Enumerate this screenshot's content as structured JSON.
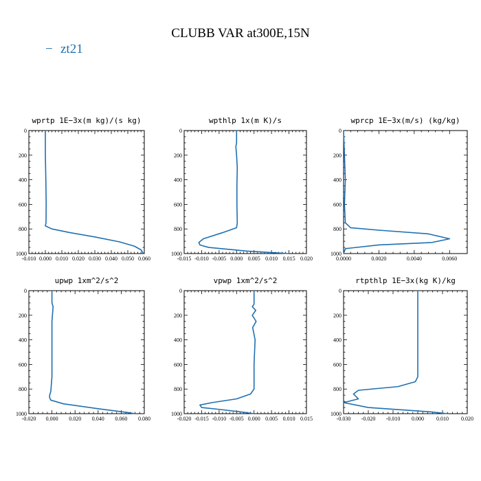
{
  "figure": {
    "title": "CLUBB VAR at300E,15N",
    "line_color": "#1f6fb0",
    "legend": {
      "label": "zt21",
      "symbol": "−"
    }
  },
  "chart_data": [
    {
      "type": "line",
      "title": "wprtp   1E−3x(m kg)/(s kg)",
      "xlim": [
        -0.01,
        0.06
      ],
      "ylim": [
        1000,
        0
      ],
      "x_ticks": [
        -0.01,
        0.0,
        0.01,
        0.02,
        0.03,
        0.04,
        0.05,
        0.06
      ],
      "x_tick_labels": [
        "-0.010",
        "0.000",
        "0.010",
        "0.020",
        "0.030",
        "0.040",
        "0.050",
        "0.060"
      ],
      "y_ticks": [
        0,
        200,
        400,
        600,
        800,
        1000
      ],
      "y_tick_labels": [
        "0",
        "200",
        "400",
        "600",
        "800",
        "1000"
      ],
      "series": [
        {
          "name": "zt21",
          "x": [
            0.0,
            0.0,
            0.0003,
            0.0005,
            0.0004,
            0.0,
            0.004,
            0.015,
            0.03,
            0.045,
            0.054,
            0.058,
            0.0595
          ],
          "y": [
            0,
            200,
            400,
            600,
            750,
            775,
            800,
            830,
            865,
            905,
            940,
            970,
            1000
          ]
        }
      ]
    },
    {
      "type": "line",
      "title": "wpthlp   1x(m K)/s",
      "xlim": [
        -0.015,
        0.02
      ],
      "ylim": [
        1000,
        0
      ],
      "x_ticks": [
        -0.015,
        -0.01,
        -0.005,
        0.0,
        0.005,
        0.01,
        0.015,
        0.02
      ],
      "x_tick_labels": [
        "-0.015",
        "-0.010",
        "-0.005",
        "0.000",
        "0.005",
        "0.010",
        "0.015",
        "0.020"
      ],
      "y_ticks": [
        0,
        200,
        400,
        600,
        800,
        1000
      ],
      "y_tick_labels": [
        "0",
        "200",
        "400",
        "600",
        "800",
        "1000"
      ],
      "series": [
        {
          "name": "zt21",
          "x": [
            0.0,
            0.0,
            -0.0002,
            0.0,
            0.0002,
            0.0001,
            0.0001,
            0.0002,
            0.0,
            -0.004,
            -0.0095,
            -0.0108,
            -0.0105,
            -0.008,
            0.003,
            0.015
          ],
          "y": [
            0,
            100,
            130,
            200,
            300,
            450,
            600,
            750,
            790,
            830,
            880,
            910,
            930,
            950,
            980,
            1000
          ]
        }
      ]
    },
    {
      "type": "line",
      "title": "wprcp   1E−3x(m/s) (kg/kg)",
      "xlim": [
        0.0,
        0.007
      ],
      "ylim": [
        1000,
        0
      ],
      "x_ticks": [
        0.0,
        0.002,
        0.004,
        0.006
      ],
      "x_tick_labels": [
        "0.0000",
        "0.0020",
        "0.0040",
        "0.0060"
      ],
      "y_ticks": [
        0,
        200,
        400,
        600,
        800,
        1000
      ],
      "y_tick_labels": [
        "0",
        "200",
        "400",
        "600",
        "800",
        "1000"
      ],
      "series": [
        {
          "name": "zt21",
          "x": [
            0.0,
            5e-05,
            0.0001,
            5e-05,
            0.0001,
            0.0004,
            0.002,
            0.0048,
            0.006,
            0.005,
            0.002,
            0.0001,
            0.0
          ],
          "y": [
            0,
            200,
            400,
            600,
            750,
            790,
            810,
            840,
            880,
            910,
            930,
            960,
            1000
          ]
        }
      ]
    },
    {
      "type": "line",
      "title": "upwp   1xm^2/s^2",
      "xlim": [
        -0.02,
        0.08
      ],
      "ylim": [
        1000,
        0
      ],
      "x_ticks": [
        -0.02,
        0.0,
        0.02,
        0.04,
        0.06,
        0.08
      ],
      "x_tick_labels": [
        "-0.020",
        "0.000",
        "0.020",
        "0.040",
        "0.060",
        "0.080"
      ],
      "y_ticks": [
        0,
        200,
        400,
        600,
        800,
        1000
      ],
      "y_tick_labels": [
        "0",
        "200",
        "400",
        "600",
        "800",
        "1000"
      ],
      "series": [
        {
          "name": "zt21",
          "x": [
            0.0,
            0.0,
            0.001,
            0.0,
            0.0,
            0.0,
            0.0,
            -0.001,
            -0.002,
            -0.002,
            -0.001,
            0.01,
            0.04,
            0.065,
            0.072
          ],
          "y": [
            0,
            100,
            130,
            250,
            400,
            500,
            700,
            820,
            850,
            870,
            890,
            920,
            960,
            990,
            1000
          ]
        }
      ]
    },
    {
      "type": "line",
      "title": "vpwp   1xm^2/s^2",
      "xlim": [
        -0.02,
        0.015
      ],
      "ylim": [
        1000,
        0
      ],
      "x_ticks": [
        -0.02,
        -0.015,
        -0.01,
        -0.005,
        0.0,
        0.005,
        0.01,
        0.015
      ],
      "x_tick_labels": [
        "-0.020",
        "-0.015",
        "-0.010",
        "-0.005",
        "0.000",
        "0.005",
        "0.010",
        "0.015"
      ],
      "y_ticks": [
        0,
        200,
        400,
        600,
        800,
        1000
      ],
      "y_tick_labels": [
        "0",
        "200",
        "400",
        "600",
        "800",
        "1000"
      ],
      "series": [
        {
          "name": "zt21",
          "x": [
            0.0,
            0.0,
            -0.0005,
            0.0005,
            -0.0005,
            0.0006,
            -0.0004,
            0.0001,
            0.0003,
            0.0,
            0.0,
            -0.001,
            -0.005,
            -0.012,
            -0.0155,
            -0.015,
            -0.01,
            -0.004,
            0.0
          ],
          "y": [
            0,
            110,
            130,
            160,
            200,
            250,
            300,
            370,
            400,
            600,
            800,
            840,
            880,
            910,
            930,
            950,
            965,
            985,
            1000
          ]
        }
      ]
    },
    {
      "type": "line",
      "title": "rtpthlp   1E−3x(kg K)/kg",
      "xlim": [
        -0.03,
        0.02
      ],
      "ylim": [
        1000,
        0
      ],
      "x_ticks": [
        -0.03,
        -0.02,
        -0.01,
        0.0,
        0.01,
        0.02
      ],
      "x_tick_labels": [
        "-0.030",
        "-0.020",
        "-0.010",
        "0.000",
        "0.010",
        "0.020"
      ],
      "y_ticks": [
        0,
        200,
        400,
        600,
        800,
        1000
      ],
      "y_tick_labels": [
        "0",
        "200",
        "400",
        "600",
        "800",
        "1000"
      ],
      "series": [
        {
          "name": "zt21",
          "x": [
            0.0,
            0.0,
            0.0,
            0.0,
            -0.001,
            -0.008,
            -0.024,
            -0.026,
            -0.025,
            -0.024,
            -0.03,
            -0.02,
            0.005,
            0.012
          ],
          "y": [
            0,
            200,
            500,
            700,
            740,
            780,
            810,
            840,
            860,
            880,
            910,
            950,
            985,
            1000
          ]
        }
      ]
    }
  ]
}
